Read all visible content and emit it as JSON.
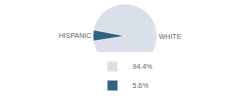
{
  "chart_data": {
    "type": "pie",
    "categories": [
      "WHITE",
      "HISPANIC"
    ],
    "values": [
      94.4,
      5.6
    ],
    "value_labels": [
      "94.4%",
      "5.6%"
    ],
    "colors": [
      "#d9e0ea",
      "#2e6382"
    ],
    "legend": "bottom"
  }
}
